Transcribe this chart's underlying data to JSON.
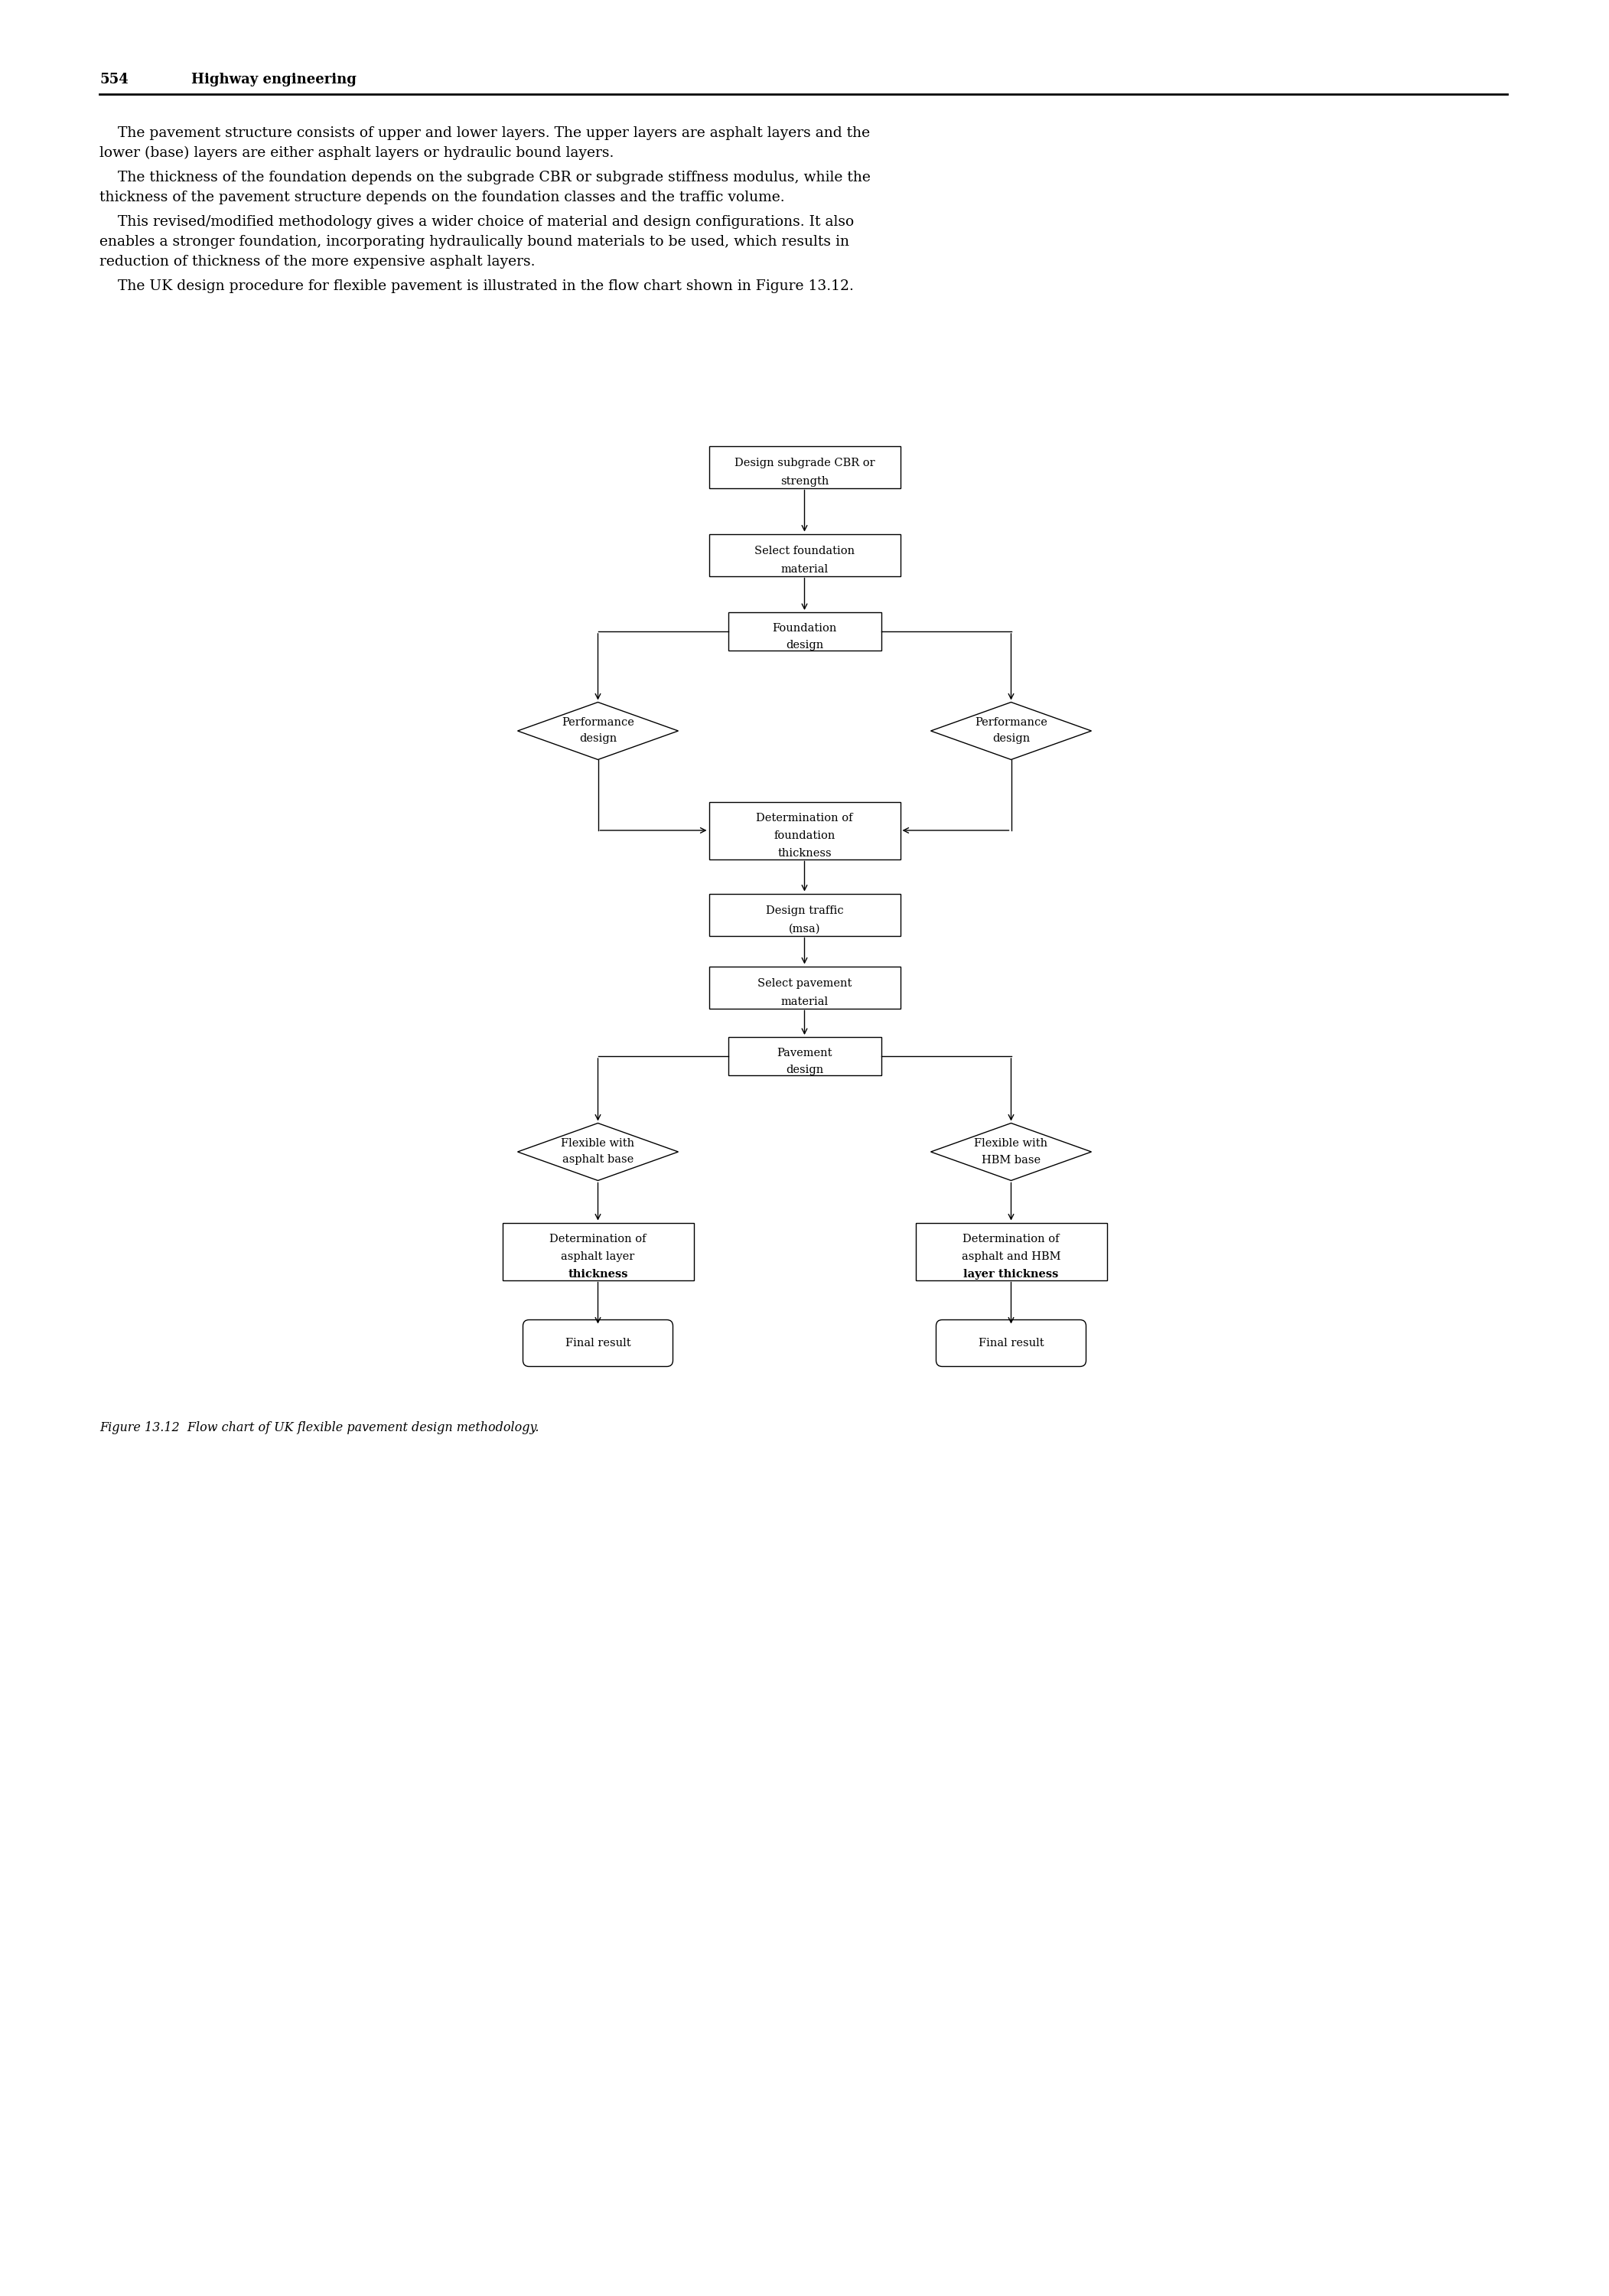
{
  "page_header_num": "554",
  "page_header_title": "Highway engineering",
  "body_paragraphs": [
    "    The pavement structure consists of upper and lower layers. The upper layers are asphalt layers and the lower (base) layers are either asphalt layers or hydraulic bound layers.",
    "    The thickness of the foundation depends on the subgrade CBR or subgrade stiffness modulus, while the thickness of the pavement structure depends on the foundation classes and the traffic volume.",
    "    This revised/modified methodology gives a wider choice of material and design configurations. It also enables a stronger foundation, incorporating hydraulically bound materials to be used, which results in reduction of thickness of the more expensive asphalt layers.",
    "    The UK design procedure for flexible pavement is illustrated in the flow chart shown in Figure 13.12."
  ],
  "figure_caption": "Figure 13.12  Flow chart of UK flexible pavement design methodology.",
  "bg_color": "#ffffff",
  "box_color": "#ffffff",
  "border_color": "#000000",
  "text_color": "#000000",
  "arrow_color": "#000000",
  "font_size_body": 13.5,
  "font_size_box": 10.5,
  "font_size_header_num": 13,
  "font_size_header_title": 13,
  "font_size_caption": 11.5,
  "lw": 1.0
}
